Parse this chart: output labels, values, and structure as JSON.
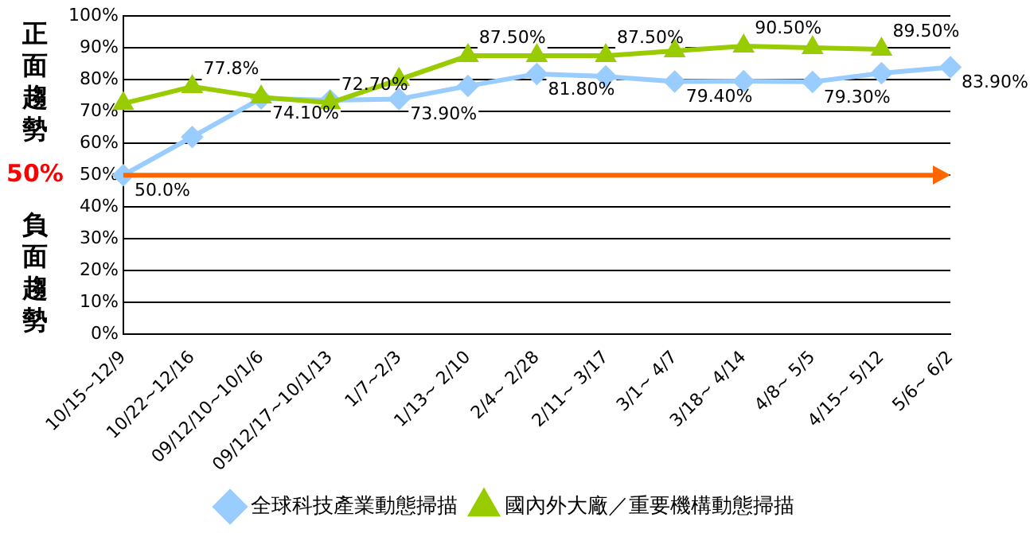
{
  "chart_data": {
    "type": "line",
    "categories": [
      "10/15~12/9",
      "10/22~12/16",
      "09/12/10~10/1/6",
      "09/12/17~10/1/13",
      "1/7~2/3",
      "1/13~ 2/10",
      "2/4~ 2/28",
      "2/11~ 3/17",
      "3/1~ 4/7",
      "3/18~ 4/14",
      "4/8~ 5/5",
      "4/15~ 5/12",
      "5/6~ 6/2"
    ],
    "series": [
      {
        "name": "全球科技產業動態掃描",
        "color": "#99ccff",
        "marker": "diamond",
        "values": [
          50.0,
          62,
          74.1,
          73.5,
          73.9,
          78,
          81.8,
          81,
          79.4,
          79.5,
          79.3,
          82,
          83.9
        ],
        "value_labels": [
          "50.0%",
          null,
          "74.10%",
          null,
          "73.90%",
          null,
          "81.80%",
          null,
          "79.40%",
          null,
          "79.30%",
          null,
          "83.90%"
        ]
      },
      {
        "name": "國內外大廠／重要機構動態掃描",
        "color": "#99cc00",
        "marker": "triangle",
        "values": [
          72.5,
          77.8,
          74.5,
          72.7,
          80,
          87.5,
          87.5,
          87.5,
          89,
          90.5,
          90,
          89.5,
          null
        ],
        "value_labels": [
          null,
          "77.8%",
          null,
          "72.70%",
          null,
          "87.50%",
          null,
          "87.50%",
          null,
          "90.50%",
          null,
          "89.50%",
          null
        ]
      }
    ],
    "ylim": [
      0,
      100
    ],
    "yticks": [
      {
        "value": 0,
        "label": "0%"
      },
      {
        "value": 10,
        "label": "10%"
      },
      {
        "value": 20,
        "label": "20%"
      },
      {
        "value": 30,
        "label": "30%"
      },
      {
        "value": 40,
        "label": "40%"
      },
      {
        "value": 50,
        "label": "50%"
      },
      {
        "value": 60,
        "label": "60%"
      },
      {
        "value": 70,
        "label": "70%"
      },
      {
        "value": 80,
        "label": "80%"
      },
      {
        "value": 90,
        "label": "90%"
      },
      {
        "value": 100,
        "label": "100%"
      }
    ],
    "grid": "y",
    "legend": "bottom",
    "ref_lines": [
      {
        "axis": "y",
        "value": 50,
        "label": "50%",
        "color": "#ff6600"
      }
    ],
    "annotations": [
      "正面趨勢",
      "負面趨勢"
    ]
  }
}
